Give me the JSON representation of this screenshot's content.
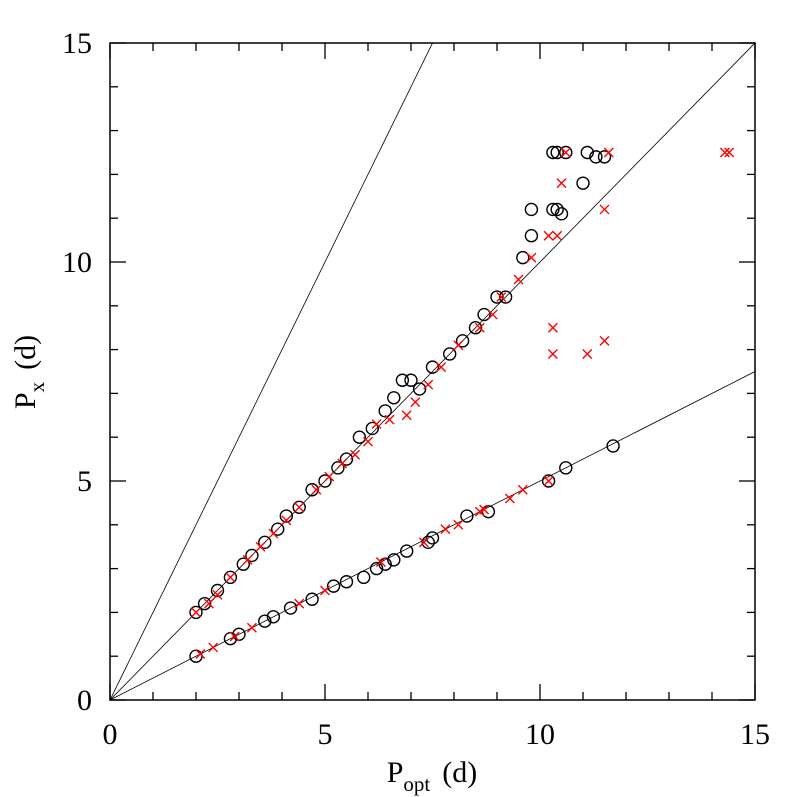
{
  "chart_data": {
    "type": "scatter",
    "xlabel": {
      "main": "P",
      "sub": "opt",
      "unit": "(d)"
    },
    "ylabel": {
      "main": "P",
      "sub": "x",
      "unit": "(d)"
    },
    "xlim": [
      0,
      15
    ],
    "ylim": [
      0,
      15
    ],
    "xticks": [
      0,
      5,
      10,
      15
    ],
    "yticks": [
      0,
      5,
      10,
      15
    ],
    "xminorticks": [
      1,
      2,
      3,
      4,
      6,
      7,
      8,
      9,
      11,
      12,
      13,
      14
    ],
    "yminorticks": [
      1,
      2,
      3,
      4,
      6,
      7,
      8,
      9,
      11,
      12,
      13,
      14
    ],
    "reference_lines": [
      {
        "slope": 2
      },
      {
        "slope": 1
      },
      {
        "slope": 0.5
      }
    ],
    "series": [
      {
        "marker": "circle",
        "color": "#000000",
        "x": [
          2.0,
          2.2,
          2.5,
          2.8,
          3.1,
          3.3,
          3.6,
          3.9,
          4.1,
          4.4,
          4.7,
          5.0,
          5.3,
          5.5,
          5.8,
          6.1,
          6.4,
          6.6,
          6.8,
          7.0,
          7.2,
          7.5,
          7.9,
          8.2,
          8.5,
          8.7,
          9.0,
          9.2,
          9.6,
          9.8,
          9.8,
          10.3,
          10.4,
          10.5,
          10.3,
          10.4,
          10.6,
          11.0,
          11.1,
          11.3,
          11.5,
          2.0,
          2.8,
          3.0,
          3.6,
          3.8,
          4.2,
          4.7,
          5.2,
          5.5,
          5.9,
          6.2,
          6.4,
          6.6,
          6.9,
          7.4,
          7.5,
          8.3,
          8.8,
          10.2,
          10.6,
          11.7
        ],
        "values": [
          2.0,
          2.2,
          2.5,
          2.8,
          3.1,
          3.3,
          3.6,
          3.9,
          4.2,
          4.4,
          4.8,
          5.0,
          5.3,
          5.5,
          6.0,
          6.2,
          6.6,
          6.9,
          7.3,
          7.3,
          7.1,
          7.6,
          7.9,
          8.2,
          8.5,
          8.8,
          9.2,
          9.2,
          10.1,
          10.6,
          11.2,
          11.2,
          11.2,
          11.1,
          12.5,
          12.5,
          12.5,
          11.8,
          12.5,
          12.4,
          12.4,
          1.0,
          1.4,
          1.5,
          1.8,
          1.9,
          2.1,
          2.3,
          2.6,
          2.7,
          2.8,
          3.0,
          3.1,
          3.2,
          3.4,
          3.6,
          3.7,
          4.2,
          4.3,
          5.0,
          5.3,
          5.8
        ]
      },
      {
        "marker": "cross",
        "color": "#ff0000",
        "x": [
          2.0,
          2.3,
          2.5,
          2.8,
          3.2,
          3.5,
          3.8,
          4.1,
          4.4,
          4.8,
          5.1,
          5.4,
          5.7,
          6.0,
          6.2,
          6.5,
          6.9,
          7.1,
          7.4,
          7.7,
          8.1,
          8.6,
          8.9,
          9.1,
          9.5,
          9.8,
          10.2,
          10.4,
          10.5,
          10.6,
          11.6,
          11.5,
          10.3,
          10.3,
          11.1,
          11.5,
          14.3,
          14.4,
          2.1,
          2.4,
          2.9,
          3.3,
          4.4,
          5.0,
          6.3,
          7.3,
          7.8,
          8.1,
          8.6,
          8.7,
          9.3,
          9.6,
          10.2
        ],
        "values": [
          2.0,
          2.2,
          2.4,
          2.8,
          3.2,
          3.5,
          3.8,
          4.1,
          4.4,
          4.8,
          5.1,
          5.4,
          5.6,
          5.9,
          6.3,
          6.4,
          6.5,
          6.8,
          7.2,
          7.6,
          8.1,
          8.5,
          8.8,
          9.2,
          9.6,
          10.1,
          10.6,
          10.6,
          11.8,
          12.5,
          12.5,
          11.2,
          8.5,
          7.9,
          7.9,
          8.2,
          12.5,
          12.5,
          1.05,
          1.2,
          1.45,
          1.65,
          2.2,
          2.5,
          3.15,
          3.6,
          3.9,
          4.0,
          4.3,
          4.35,
          4.6,
          4.8,
          5.0
        ]
      }
    ]
  }
}
